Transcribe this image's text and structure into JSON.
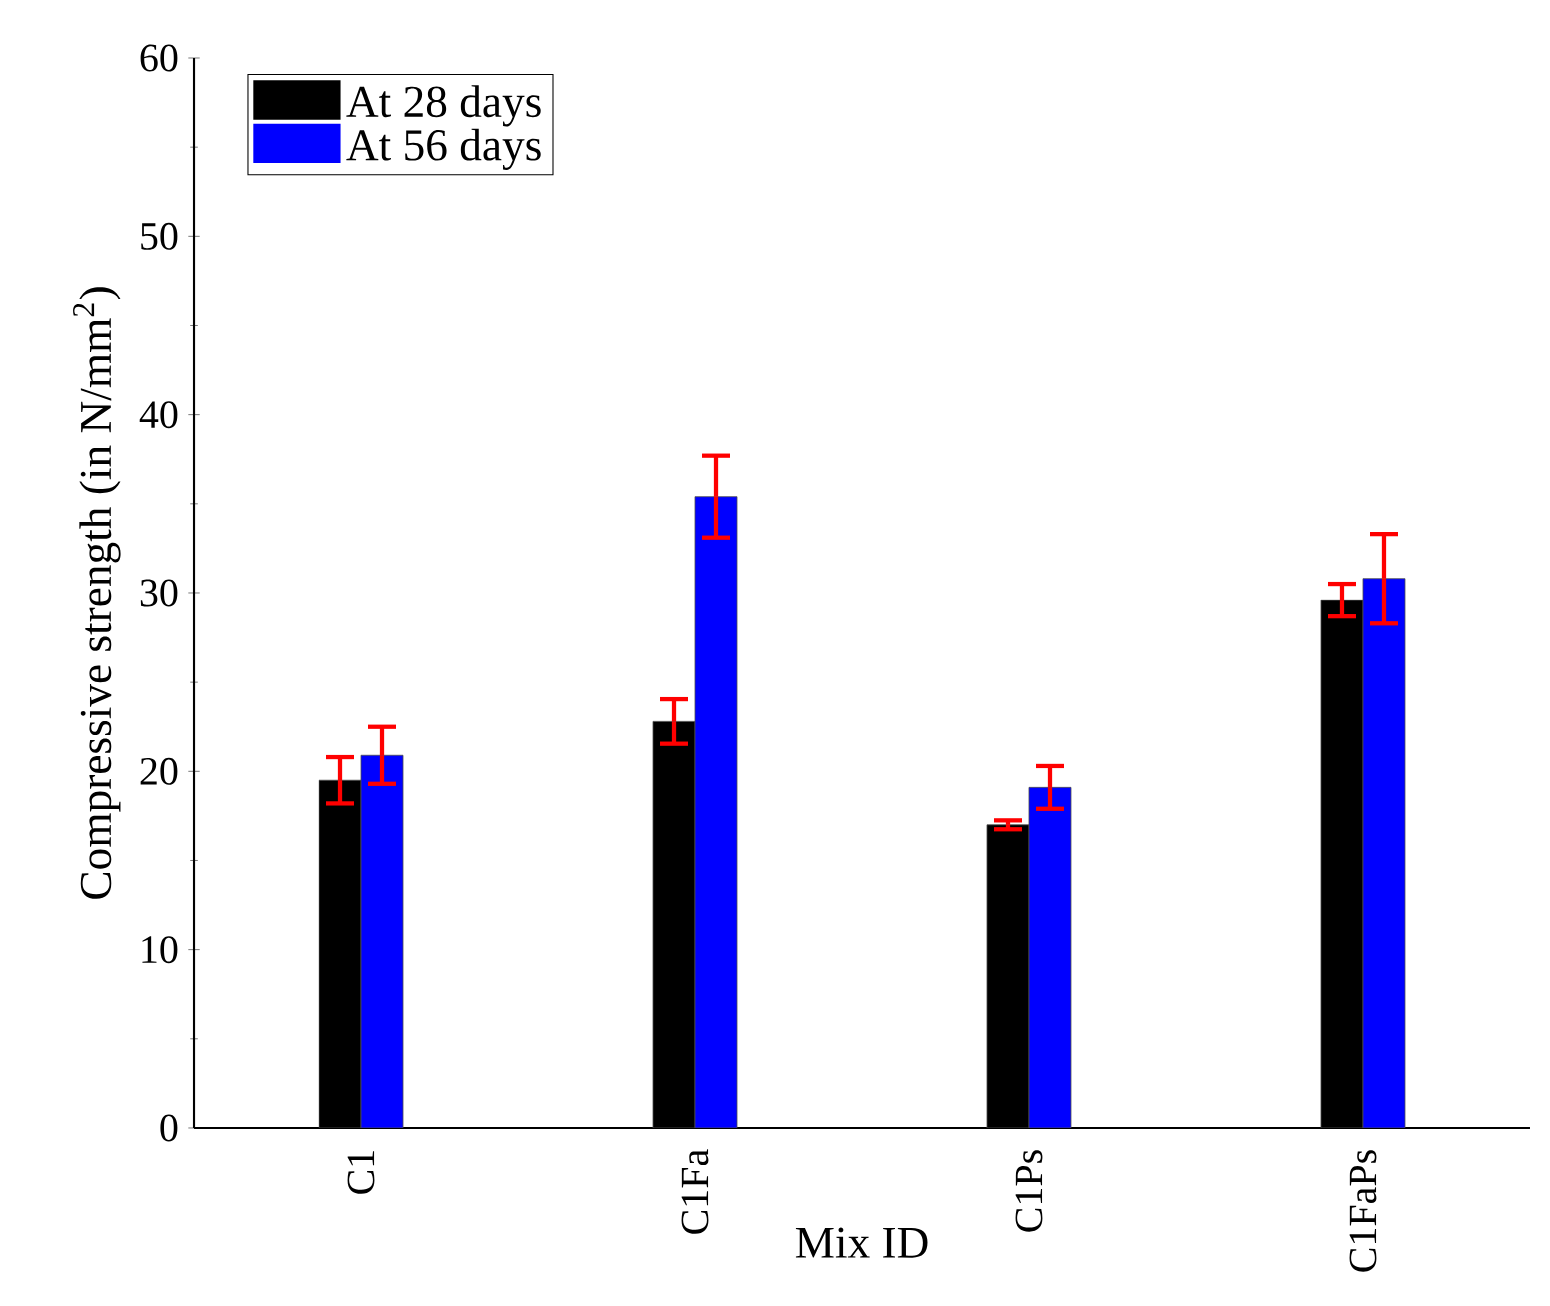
{
  "chart_data": {
    "type": "bar",
    "xlabel": "Mix ID",
    "ylabel": "Compressive strength (in N/mm$^{2}$)",
    "categories": [
      "C1",
      "C1Fa",
      "C1Ps",
      "C1FaPs"
    ],
    "series": [
      {
        "name": "At 28 days",
        "color": "#000000",
        "values": [
          19.5,
          22.8,
          17.0,
          29.6
        ],
        "errors": [
          1.3,
          1.25,
          0.25,
          0.9
        ]
      },
      {
        "name": "At 56 days",
        "color": "#0000ff",
        "values": [
          20.9,
          35.4,
          19.1,
          30.8
        ],
        "errors": [
          1.6,
          2.3,
          1.2,
          2.5
        ]
      }
    ],
    "ylim": [
      0,
      60
    ],
    "yticks": [
      0,
      10,
      20,
      30,
      40,
      50,
      60
    ],
    "legend": "top left",
    "grid": false
  }
}
